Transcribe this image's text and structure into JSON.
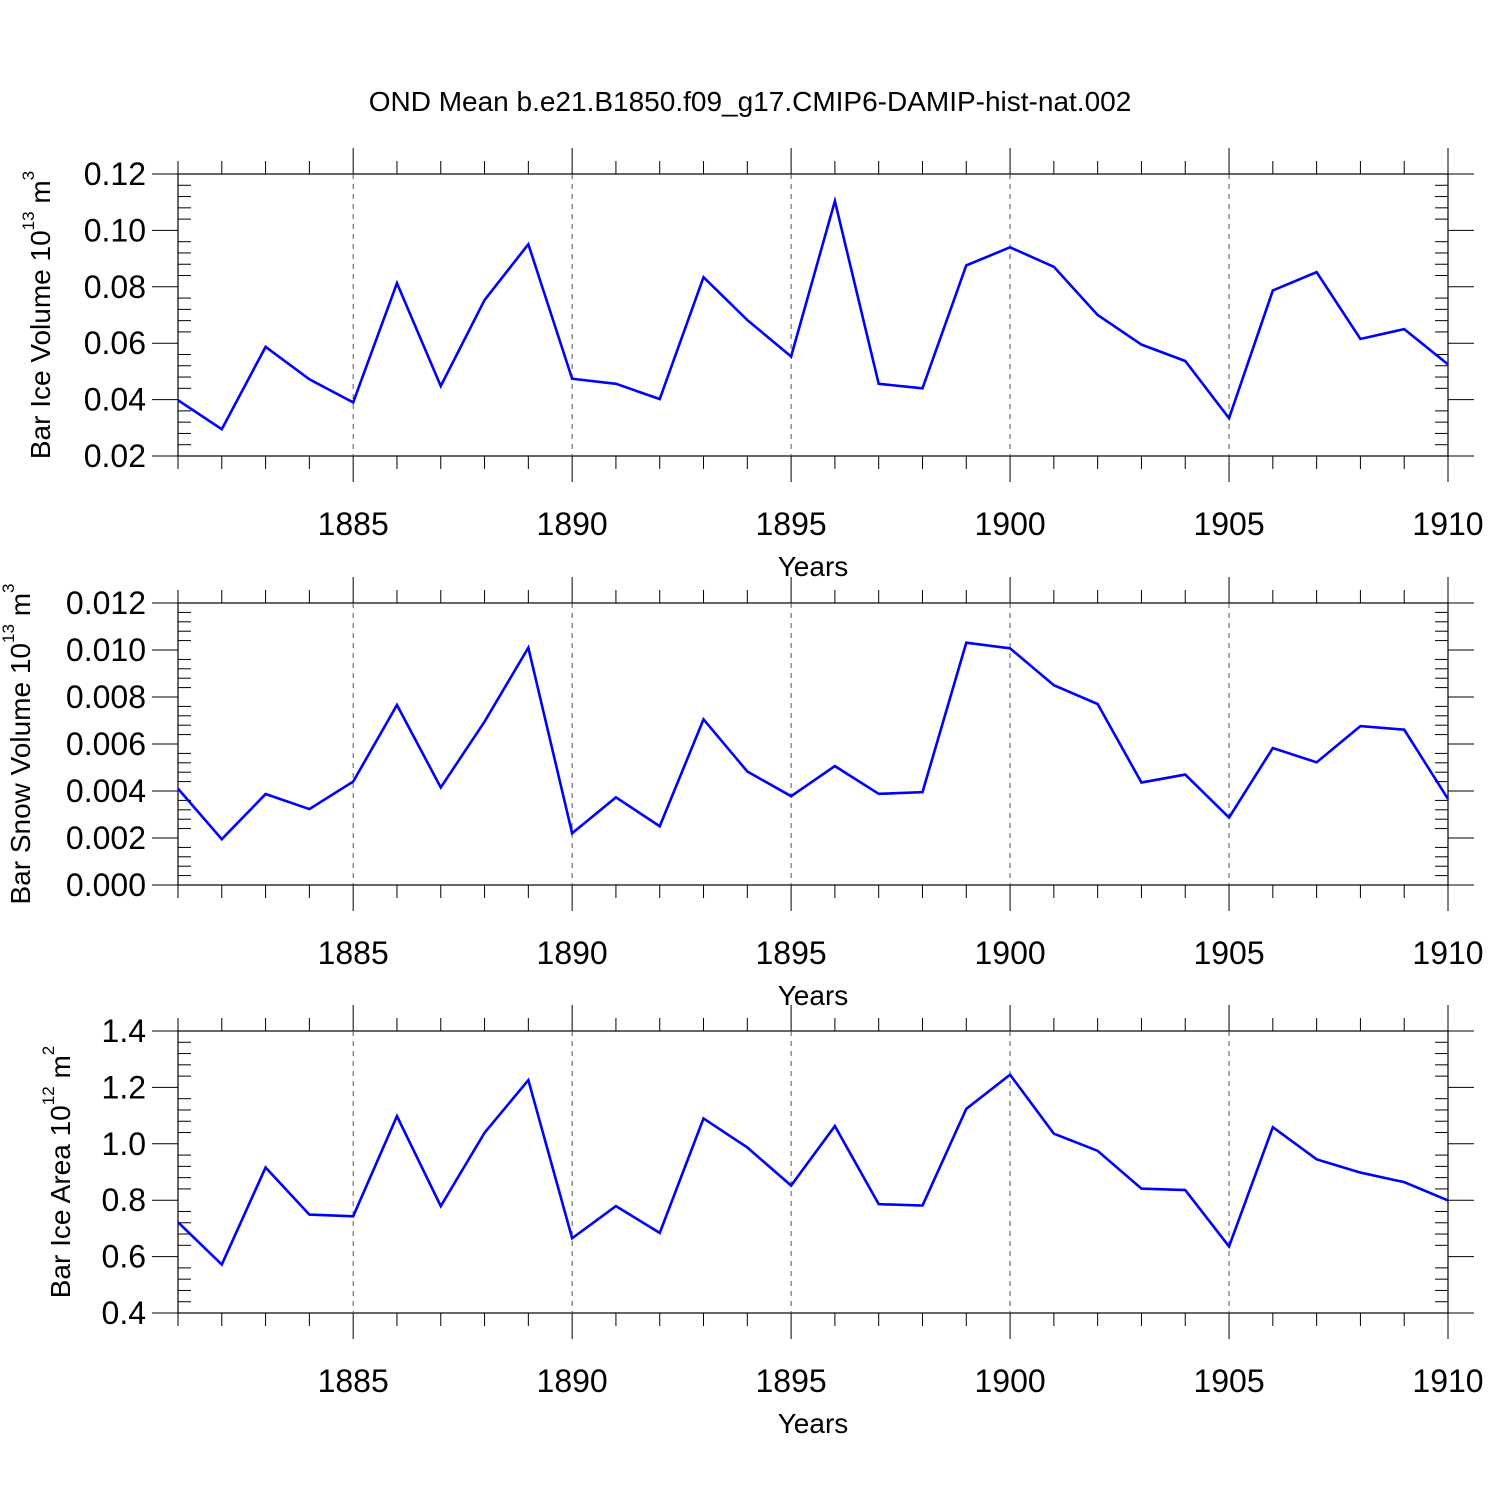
{
  "title": "OND Mean b.e21.B1850.f09_g17.CMIP6-DAMIP-hist-nat.002",
  "colors": {
    "line": "#0000ff",
    "axis": "#000000",
    "grid": "#555555",
    "background": "#ffffff"
  },
  "chart_data": [
    {
      "type": "line",
      "ylabel": {
        "main": "Bar Ice Volume 10",
        "exponent": "13",
        "unit_main": " m",
        "unit_exponent": "3"
      },
      "xlabel": "Years",
      "xlim": [
        1881,
        1910
      ],
      "ylim": [
        0.02,
        0.12
      ],
      "xticks": [
        1885,
        1890,
        1895,
        1900,
        1905,
        1910
      ],
      "xtick_labels": [
        "1885",
        "1890",
        "1895",
        "1900",
        "1905",
        "1910"
      ],
      "yticks": [
        0.02,
        0.04,
        0.06,
        0.08,
        0.1,
        0.12
      ],
      "ytick_labels": [
        "0.02",
        "0.04",
        "0.06",
        "0.08",
        "0.10",
        "0.12"
      ],
      "x": [
        1881,
        1882,
        1883,
        1884,
        1885,
        1886,
        1887,
        1888,
        1889,
        1890,
        1891,
        1892,
        1893,
        1894,
        1895,
        1896,
        1897,
        1898,
        1899,
        1900,
        1901,
        1902,
        1903,
        1904,
        1905,
        1906,
        1907,
        1908,
        1909,
        1910
      ],
      "values": [
        0.0398,
        0.0295,
        0.0587,
        0.0472,
        0.039,
        0.0813,
        0.0448,
        0.0753,
        0.0951,
        0.0474,
        0.0456,
        0.0402,
        0.0834,
        0.0682,
        0.0553,
        0.1104,
        0.0456,
        0.044,
        0.0876,
        0.094,
        0.0871,
        0.07,
        0.0595,
        0.0537,
        0.0334,
        0.0787,
        0.0852,
        0.0615,
        0.065,
        0.0525
      ]
    },
    {
      "type": "line",
      "ylabel": {
        "main": "Bar Snow Volume 10",
        "exponent": "13",
        "unit_main": " m",
        "unit_exponent": "3"
      },
      "xlabel": "Years",
      "xlim": [
        1881,
        1910
      ],
      "ylim": [
        0.0,
        0.012
      ],
      "xticks": [
        1885,
        1890,
        1895,
        1900,
        1905,
        1910
      ],
      "xtick_labels": [
        "1885",
        "1890",
        "1895",
        "1900",
        "1905",
        "1910"
      ],
      "yticks": [
        0.0,
        0.002,
        0.004,
        0.006,
        0.008,
        0.01,
        0.012
      ],
      "ytick_labels": [
        "0.000",
        "0.002",
        "0.004",
        "0.006",
        "0.008",
        "0.010",
        "0.012"
      ],
      "x": [
        1881,
        1882,
        1883,
        1884,
        1885,
        1886,
        1887,
        1888,
        1889,
        1890,
        1891,
        1892,
        1893,
        1894,
        1895,
        1896,
        1897,
        1898,
        1899,
        1900,
        1901,
        1902,
        1903,
        1904,
        1905,
        1906,
        1907,
        1908,
        1909,
        1910
      ],
      "values": [
        0.0041,
        0.00195,
        0.00387,
        0.00323,
        0.0044,
        0.00766,
        0.00415,
        0.00695,
        0.0101,
        0.0022,
        0.00373,
        0.0025,
        0.00705,
        0.00483,
        0.00378,
        0.00506,
        0.00388,
        0.00395,
        0.01031,
        0.01007,
        0.0085,
        0.0077,
        0.00436,
        0.0047,
        0.00287,
        0.00583,
        0.00522,
        0.00676,
        0.00661,
        0.00366
      ]
    },
    {
      "type": "line",
      "ylabel": {
        "main": "Bar Ice Area 10",
        "exponent": "12",
        "unit_main": " m",
        "unit_exponent": "2"
      },
      "xlabel": "Years",
      "xlim": [
        1881,
        1910
      ],
      "ylim": [
        0.4,
        1.4
      ],
      "xticks": [
        1885,
        1890,
        1895,
        1900,
        1905,
        1910
      ],
      "xtick_labels": [
        "1885",
        "1890",
        "1895",
        "1900",
        "1905",
        "1910"
      ],
      "yticks": [
        0.4,
        0.6,
        0.8,
        1.0,
        1.2,
        1.4
      ],
      "ytick_labels": [
        "0.4",
        "0.6",
        "0.8",
        "1.0",
        "1.2",
        "1.4"
      ],
      "x": [
        1881,
        1882,
        1883,
        1884,
        1885,
        1886,
        1887,
        1888,
        1889,
        1890,
        1891,
        1892,
        1893,
        1894,
        1895,
        1896,
        1897,
        1898,
        1899,
        1900,
        1901,
        1902,
        1903,
        1904,
        1905,
        1906,
        1907,
        1908,
        1909,
        1910
      ],
      "values": [
        0.722,
        0.572,
        0.916,
        0.749,
        0.743,
        1.098,
        0.779,
        1.039,
        1.226,
        0.665,
        0.779,
        0.684,
        1.09,
        0.987,
        0.852,
        1.063,
        0.786,
        0.781,
        1.124,
        1.245,
        1.036,
        0.975,
        0.841,
        0.836,
        0.636,
        1.059,
        0.945,
        0.898,
        0.864,
        0.799
      ]
    }
  ]
}
